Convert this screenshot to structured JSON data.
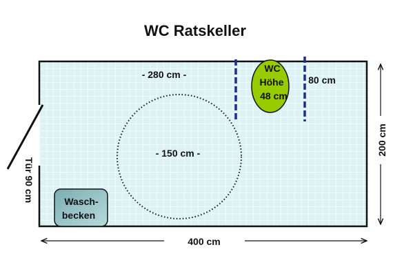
{
  "title": "WC Ratskeller",
  "room": {
    "width_label": "400 cm",
    "height_label": "200 cm",
    "top_label": "- 280 cm -",
    "floor_color": "#dff2f3",
    "grid_color": "#ffffff"
  },
  "door": {
    "label": "Tür 90 cm"
  },
  "turning_circle": {
    "label": "- 150 cm -"
  },
  "wc": {
    "line1": "WC",
    "line2": "Höhe",
    "line3": "48 cm",
    "fill": "#99cc00"
  },
  "wc_space": {
    "label": "80 cm",
    "marker_color": "#1a2f8f"
  },
  "sink": {
    "line1": "Wasch-",
    "line2": "becken",
    "fill": "#7fb6b9"
  }
}
